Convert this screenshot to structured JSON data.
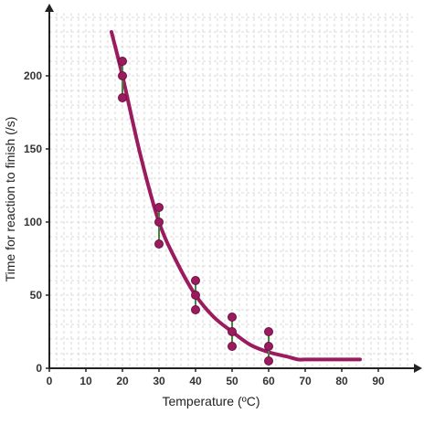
{
  "colors": {
    "axis": "#222222",
    "grid": "#cfcfcf",
    "curve": "#9b1b5e",
    "point_fill": "#9b1b5e",
    "point_stroke": "#6e1042",
    "error_bar": "#3d8a3d"
  },
  "chart_data": {
    "type": "scatter",
    "title": "",
    "xlabel": "Temperature (ºC)",
    "ylabel": "Time for reaction to finish (/s)",
    "xlim": [
      0,
      100
    ],
    "ylim": [
      0,
      245
    ],
    "x_ticks": [
      0,
      10,
      20,
      30,
      40,
      50,
      60,
      70,
      80,
      90
    ],
    "y_ticks": [
      0,
      50,
      100,
      150,
      200
    ],
    "grid": true,
    "measurements": [
      {
        "x": 20,
        "values": [
          210,
          200,
          185
        ]
      },
      {
        "x": 30,
        "values": [
          110,
          100,
          85
        ]
      },
      {
        "x": 40,
        "values": [
          60,
          50,
          40
        ]
      },
      {
        "x": 50,
        "values": [
          35,
          25,
          15
        ]
      },
      {
        "x": 60,
        "values": [
          25,
          15,
          5
        ]
      }
    ],
    "curve": {
      "points": [
        [
          17,
          230
        ],
        [
          20,
          200
        ],
        [
          25,
          145
        ],
        [
          30,
          100
        ],
        [
          35,
          72
        ],
        [
          40,
          50
        ],
        [
          45,
          35
        ],
        [
          50,
          25
        ],
        [
          55,
          16
        ],
        [
          60,
          11
        ],
        [
          65,
          8
        ],
        [
          68,
          6
        ],
        [
          70,
          6
        ],
        [
          75,
          6
        ],
        [
          85,
          6
        ]
      ]
    }
  }
}
